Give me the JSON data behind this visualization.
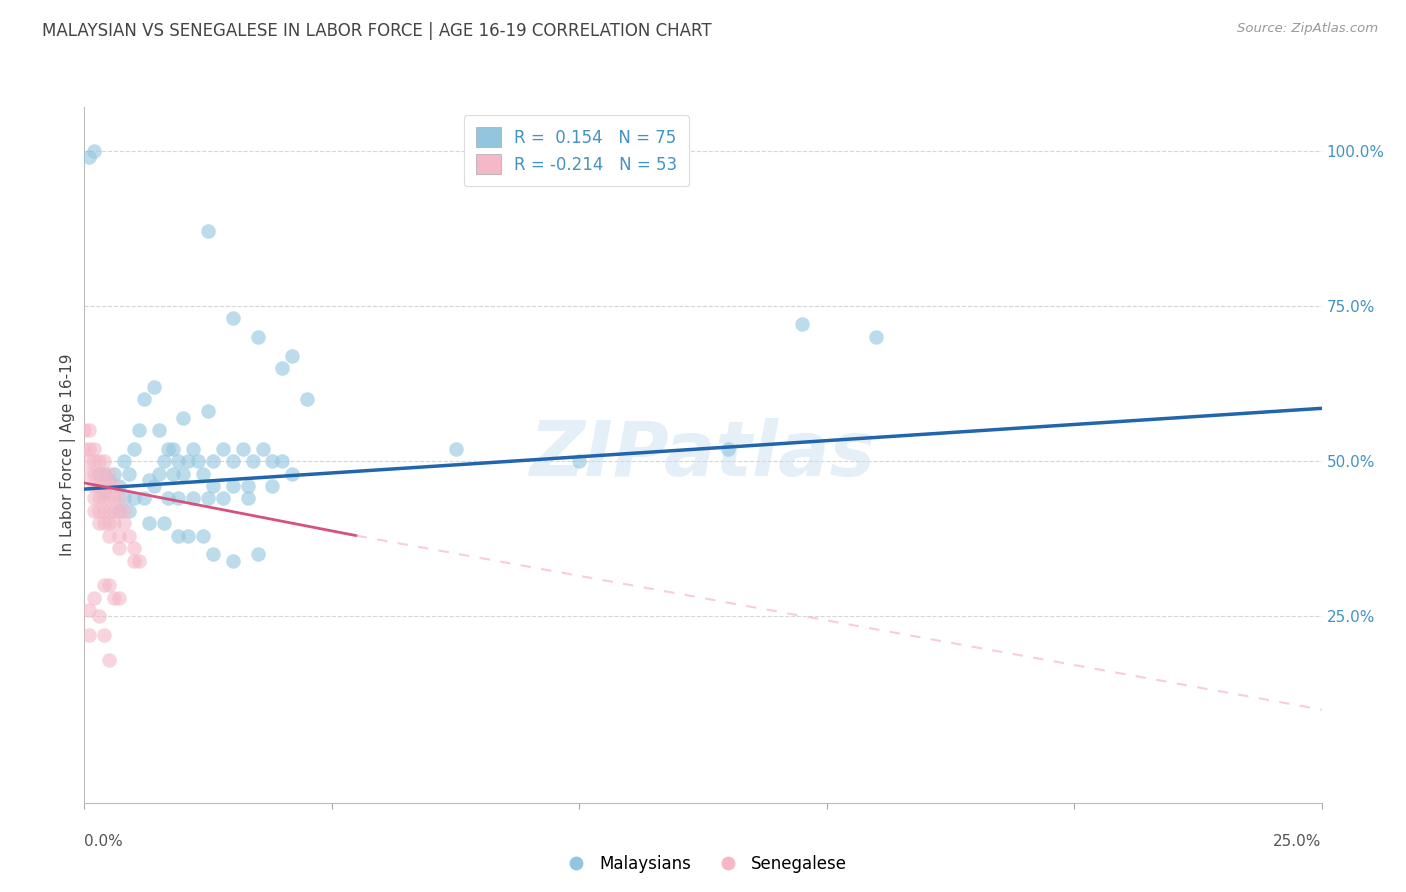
{
  "title": "MALAYSIAN VS SENEGALESE IN LABOR FORCE | AGE 16-19 CORRELATION CHART",
  "source": "Source: ZipAtlas.com",
  "ylabel": "In Labor Force | Age 16-19",
  "right_yticks": [
    0.25,
    0.5,
    0.75,
    1.0
  ],
  "right_yticklabels": [
    "25.0%",
    "50.0%",
    "75.0%",
    "100.0%"
  ],
  "xlim": [
    0.0,
    0.25
  ],
  "ylim": [
    -0.05,
    1.07
  ],
  "legend_blue_r": "0.154",
  "legend_blue_n": "75",
  "legend_pink_r": "-0.214",
  "legend_pink_n": "53",
  "watermark": "ZIPatlas",
  "blue_color": "#92c5de",
  "pink_color": "#f4b8c8",
  "blue_line_color": "#2166ac",
  "pink_line_color": "#d6517d",
  "pink_dash_color": "#f4b8c8",
  "grid_color": "#cccccc",
  "title_color": "#444444",
  "right_label_color": "#4393c3",
  "blue_scatter": [
    [
      0.001,
      0.99
    ],
    [
      0.002,
      1.0
    ],
    [
      0.025,
      0.87
    ],
    [
      0.03,
      0.73
    ],
    [
      0.035,
      0.7
    ],
    [
      0.04,
      0.65
    ],
    [
      0.042,
      0.67
    ],
    [
      0.045,
      0.6
    ],
    [
      0.02,
      0.57
    ],
    [
      0.025,
      0.58
    ],
    [
      0.015,
      0.55
    ],
    [
      0.018,
      0.52
    ],
    [
      0.012,
      0.6
    ],
    [
      0.014,
      0.62
    ],
    [
      0.01,
      0.52
    ],
    [
      0.011,
      0.55
    ],
    [
      0.008,
      0.5
    ],
    [
      0.009,
      0.48
    ],
    [
      0.006,
      0.48
    ],
    [
      0.007,
      0.46
    ],
    [
      0.005,
      0.47
    ],
    [
      0.004,
      0.48
    ],
    [
      0.016,
      0.5
    ],
    [
      0.017,
      0.52
    ],
    [
      0.019,
      0.5
    ],
    [
      0.021,
      0.5
    ],
    [
      0.023,
      0.5
    ],
    [
      0.022,
      0.52
    ],
    [
      0.026,
      0.5
    ],
    [
      0.028,
      0.52
    ],
    [
      0.03,
      0.5
    ],
    [
      0.032,
      0.52
    ],
    [
      0.034,
      0.5
    ],
    [
      0.036,
      0.52
    ],
    [
      0.038,
      0.5
    ],
    [
      0.04,
      0.5
    ],
    [
      0.003,
      0.48
    ],
    [
      0.004,
      0.45
    ],
    [
      0.013,
      0.47
    ],
    [
      0.015,
      0.48
    ],
    [
      0.018,
      0.48
    ],
    [
      0.02,
      0.48
    ],
    [
      0.024,
      0.48
    ],
    [
      0.026,
      0.46
    ],
    [
      0.03,
      0.46
    ],
    [
      0.033,
      0.46
    ],
    [
      0.038,
      0.46
    ],
    [
      0.042,
      0.48
    ],
    [
      0.008,
      0.44
    ],
    [
      0.01,
      0.44
    ],
    [
      0.012,
      0.44
    ],
    [
      0.014,
      0.46
    ],
    [
      0.017,
      0.44
    ],
    [
      0.019,
      0.44
    ],
    [
      0.022,
      0.44
    ],
    [
      0.025,
      0.44
    ],
    [
      0.028,
      0.44
    ],
    [
      0.033,
      0.44
    ],
    [
      0.007,
      0.42
    ],
    [
      0.009,
      0.42
    ],
    [
      0.013,
      0.4
    ],
    [
      0.016,
      0.4
    ],
    [
      0.019,
      0.38
    ],
    [
      0.021,
      0.38
    ],
    [
      0.024,
      0.38
    ],
    [
      0.026,
      0.35
    ],
    [
      0.03,
      0.34
    ],
    [
      0.035,
      0.35
    ],
    [
      0.075,
      0.52
    ],
    [
      0.1,
      0.5
    ],
    [
      0.13,
      0.52
    ],
    [
      0.145,
      0.72
    ],
    [
      0.16,
      0.7
    ]
  ],
  "pink_scatter": [
    [
      0.0,
      0.55
    ],
    [
      0.0,
      0.52
    ],
    [
      0.001,
      0.55
    ],
    [
      0.001,
      0.52
    ],
    [
      0.001,
      0.5
    ],
    [
      0.001,
      0.48
    ],
    [
      0.002,
      0.52
    ],
    [
      0.002,
      0.5
    ],
    [
      0.002,
      0.48
    ],
    [
      0.002,
      0.46
    ],
    [
      0.002,
      0.44
    ],
    [
      0.002,
      0.42
    ],
    [
      0.003,
      0.5
    ],
    [
      0.003,
      0.48
    ],
    [
      0.003,
      0.46
    ],
    [
      0.003,
      0.44
    ],
    [
      0.003,
      0.42
    ],
    [
      0.003,
      0.4
    ],
    [
      0.004,
      0.5
    ],
    [
      0.004,
      0.48
    ],
    [
      0.004,
      0.46
    ],
    [
      0.004,
      0.44
    ],
    [
      0.004,
      0.42
    ],
    [
      0.004,
      0.4
    ],
    [
      0.005,
      0.48
    ],
    [
      0.005,
      0.46
    ],
    [
      0.005,
      0.44
    ],
    [
      0.005,
      0.42
    ],
    [
      0.005,
      0.4
    ],
    [
      0.005,
      0.38
    ],
    [
      0.006,
      0.46
    ],
    [
      0.006,
      0.44
    ],
    [
      0.006,
      0.42
    ],
    [
      0.006,
      0.4
    ],
    [
      0.007,
      0.44
    ],
    [
      0.007,
      0.42
    ],
    [
      0.007,
      0.38
    ],
    [
      0.007,
      0.36
    ],
    [
      0.008,
      0.42
    ],
    [
      0.008,
      0.4
    ],
    [
      0.009,
      0.38
    ],
    [
      0.01,
      0.36
    ],
    [
      0.01,
      0.34
    ],
    [
      0.011,
      0.34
    ],
    [
      0.001,
      0.26
    ],
    [
      0.001,
      0.22
    ],
    [
      0.002,
      0.28
    ],
    [
      0.003,
      0.25
    ],
    [
      0.004,
      0.22
    ],
    [
      0.005,
      0.18
    ],
    [
      0.004,
      0.3
    ],
    [
      0.005,
      0.3
    ],
    [
      0.006,
      0.28
    ],
    [
      0.007,
      0.28
    ]
  ],
  "blue_trendline": [
    [
      0.0,
      0.455
    ],
    [
      0.25,
      0.585
    ]
  ],
  "pink_solid_trendline": [
    [
      0.0,
      0.465
    ],
    [
      0.055,
      0.38
    ]
  ],
  "pink_dash_trendline": [
    [
      0.055,
      0.38
    ],
    [
      0.25,
      0.1
    ]
  ]
}
